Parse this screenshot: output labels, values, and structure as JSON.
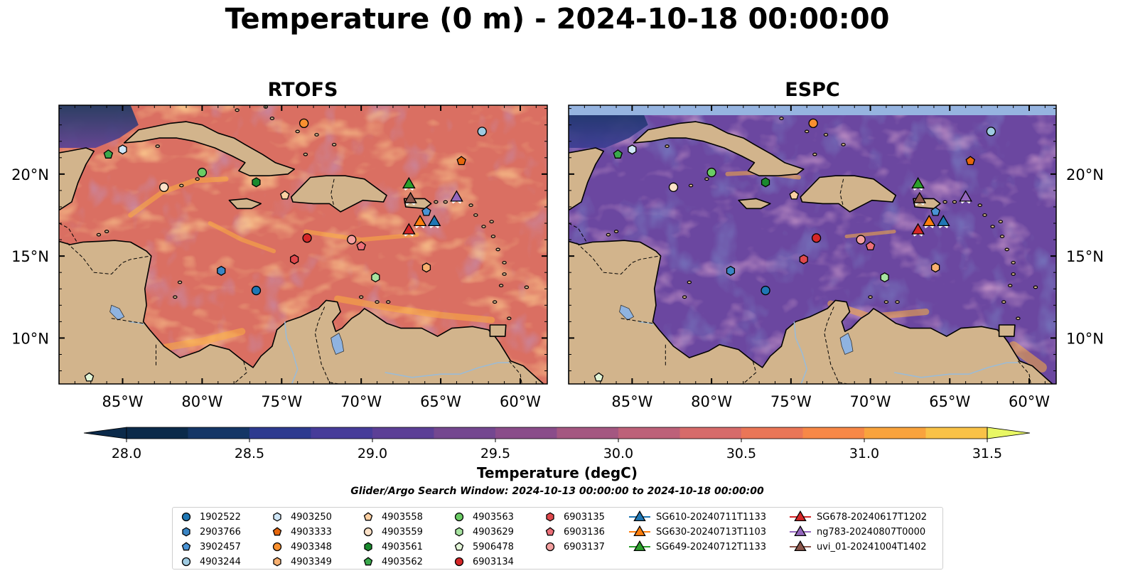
{
  "figure": {
    "title": "Temperature (0 m) - 2024-10-18 00:00:00",
    "search_window": "Glider/Argo Search Window: 2024-10-13 00:00:00 to 2024-10-18 00:00:00"
  },
  "panels": [
    {
      "id": "rtofs",
      "title": "RTOFS"
    },
    {
      "id": "espc",
      "title": "ESPC"
    }
  ],
  "axes": {
    "lon_range": [
      -89,
      -58.3
    ],
    "lat_range": [
      7.2,
      24.2
    ],
    "lon_ticks": [
      {
        "value": -85,
        "label": "85°W"
      },
      {
        "value": -80,
        "label": "80°W"
      },
      {
        "value": -75,
        "label": "75°W"
      },
      {
        "value": -70,
        "label": "70°W"
      },
      {
        "value": -65,
        "label": "65°W"
      },
      {
        "value": -60,
        "label": "60°W"
      }
    ],
    "lat_ticks": [
      {
        "value": 20,
        "label": "20°N"
      },
      {
        "value": 15,
        "label": "15°N"
      },
      {
        "value": 10,
        "label": "10°N"
      }
    ]
  },
  "colorbar": {
    "label": "Temperature (degC)",
    "min": 28.0,
    "max": 31.5,
    "levels": [
      28.0,
      28.25,
      28.5,
      28.75,
      29.0,
      29.25,
      29.5,
      29.75,
      30.0,
      30.25,
      30.5,
      30.75,
      31.0,
      31.25,
      31.5
    ],
    "ticks": [
      "28.0",
      "28.5",
      "29.0",
      "29.5",
      "30.0",
      "30.5",
      "31.0",
      "31.5"
    ],
    "colors": [
      "#0b2a4a",
      "#143666",
      "#2d3a8f",
      "#463c99",
      "#5c3f96",
      "#744790",
      "#8a4c8a",
      "#a45781",
      "#bd6179",
      "#d66b6a",
      "#ea7657",
      "#f78847",
      "#f9a33d",
      "#f9c247",
      "#e8f764"
    ]
  },
  "map_colors": {
    "land": "#d2b48c",
    "lakes": "#8fb3e0",
    "rivers": "#9bbbd6",
    "ocean_rtofs": "#da6f62",
    "ocean_espc": "#6b47a0",
    "espc_missing_band": "#96b4e0"
  },
  "observations": [
    {
      "id": "1902522",
      "marker": "circle",
      "color": "#1f77b4",
      "lon": -76.6,
      "lat": 12.9
    },
    {
      "id": "2903766",
      "marker": "hexagon",
      "color": "#3a85c4",
      "lon": -78.8,
      "lat": 14.1
    },
    {
      "id": "3902457",
      "marker": "pentagon",
      "color": "#4a93d4",
      "lon": -65.9,
      "lat": 17.7
    },
    {
      "id": "4903244",
      "marker": "circle",
      "color": "#9ecae1",
      "lon": -62.4,
      "lat": 22.6
    },
    {
      "id": "4903250",
      "marker": "hexagon",
      "color": "#cfe6f7",
      "lon": -85.0,
      "lat": 21.5
    },
    {
      "id": "4903333",
      "marker": "pentagon",
      "color": "#e6660b",
      "lon": -63.7,
      "lat": 20.8
    },
    {
      "id": "4903348",
      "marker": "circle",
      "color": "#f9902f",
      "lon": -73.6,
      "lat": 23.1
    },
    {
      "id": "4903349",
      "marker": "hexagon",
      "color": "#f8b070",
      "lon": -65.9,
      "lat": 14.3
    },
    {
      "id": "4903558",
      "marker": "pentagon",
      "color": "#fdd0a2",
      "lon": -74.8,
      "lat": 18.7
    },
    {
      "id": "4903559",
      "marker": "circle",
      "color": "#fde2c8",
      "lon": -82.4,
      "lat": 19.2
    },
    {
      "id": "4903561",
      "marker": "hexagon",
      "color": "#1a8a2e",
      "lon": -76.6,
      "lat": 19.5
    },
    {
      "id": "4903562",
      "marker": "pentagon",
      "color": "#3aa84c",
      "lon": -85.9,
      "lat": 21.2
    },
    {
      "id": "4903563",
      "marker": "circle",
      "color": "#6acc64",
      "lon": -80.0,
      "lat": 20.1
    },
    {
      "id": "4903629",
      "marker": "hexagon",
      "color": "#a7e3a0",
      "lon": -69.1,
      "lat": 13.7
    },
    {
      "id": "5906478",
      "marker": "pentagon",
      "color": "#e3f6d8",
      "lon": -87.1,
      "lat": 7.6
    },
    {
      "id": "6903134",
      "marker": "circle",
      "color": "#d62728",
      "lon": -73.4,
      "lat": 16.1
    },
    {
      "id": "6903135",
      "marker": "hexagon",
      "color": "#e0484c",
      "lon": -74.2,
      "lat": 14.8
    },
    {
      "id": "6903136",
      "marker": "pentagon",
      "color": "#ec6f78",
      "lon": -70.0,
      "lat": 15.6
    },
    {
      "id": "6903137",
      "marker": "circle",
      "color": "#f4a0a0",
      "lon": -70.6,
      "lat": 16.0
    }
  ],
  "gliders": [
    {
      "id": "SG610-20240711T1133",
      "color": "#1f77b4",
      "lon": -65.4,
      "lat": 17.1
    },
    {
      "id": "SG630-20240713T1103",
      "color": "#ff7f0e",
      "lon": -66.3,
      "lat": 17.1
    },
    {
      "id": "SG649-20240712T1133",
      "color": "#2ca02c",
      "lon": -67.0,
      "lat": 19.4
    },
    {
      "id": "SG678-20240617T1202",
      "color": "#d62728",
      "lon": -67.0,
      "lat": 16.6
    },
    {
      "id": "ng783-20240807T0000",
      "color": "#9467bd",
      "lon": -64.0,
      "lat": 18.6
    },
    {
      "id": "uvi_01-20241004T1402",
      "color": "#8c564b",
      "lon": -66.9,
      "lat": 18.5
    }
  ]
}
